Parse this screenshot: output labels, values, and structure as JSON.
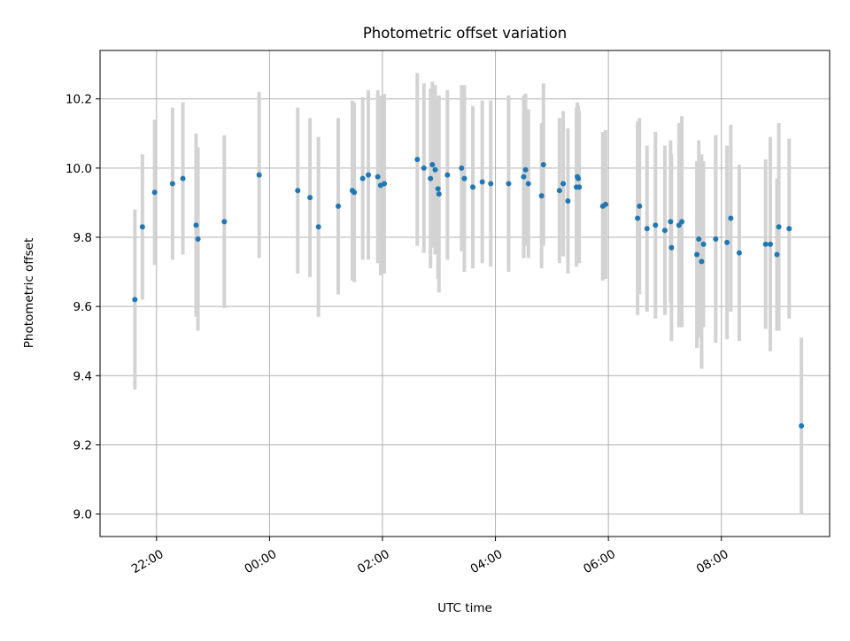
{
  "chart_data": {
    "type": "scatter",
    "title": "Photometric offset variation",
    "xlabel": "UTC time",
    "ylabel": "Photometric offset",
    "x_unit": "UTC time (hours of day)",
    "xlim": [
      "21:00",
      "09:55"
    ],
    "ylim": [
      8.935,
      10.34
    ],
    "x_ticks": [
      "22:00",
      "00:00",
      "02:00",
      "04:00",
      "06:00",
      "08:00"
    ],
    "y_ticks": [
      "9.0",
      "9.2",
      "9.4",
      "9.6",
      "9.8",
      "10.0",
      "10.2"
    ],
    "grid": true,
    "colors": {
      "point": "#1f77b4",
      "errorbar": "#d3d3d3",
      "grid": "#b0b0b0"
    },
    "points": [
      {
        "time": "21:37",
        "y": 9.62,
        "err": 0.26
      },
      {
        "time": "21:45",
        "y": 9.83,
        "err": 0.21
      },
      {
        "time": "21:58",
        "y": 9.93,
        "err": 0.21
      },
      {
        "time": "22:17",
        "y": 9.955,
        "err": 0.22
      },
      {
        "time": "22:28",
        "y": 9.97,
        "err": 0.22
      },
      {
        "time": "22:42",
        "y": 9.835,
        "err": 0.265
      },
      {
        "time": "22:44",
        "y": 9.795,
        "err": 0.265
      },
      {
        "time": "23:12",
        "y": 9.845,
        "err": 0.25
      },
      {
        "time": "23:49",
        "y": 9.98,
        "err": 0.24
      },
      {
        "time": "00:30",
        "y": 9.935,
        "err": 0.24
      },
      {
        "time": "00:43",
        "y": 9.915,
        "err": 0.23
      },
      {
        "time": "00:52",
        "y": 9.83,
        "err": 0.26
      },
      {
        "time": "01:13",
        "y": 9.89,
        "err": 0.255
      },
      {
        "time": "01:28",
        "y": 9.935,
        "err": 0.26
      },
      {
        "time": "01:30",
        "y": 9.93,
        "err": 0.26
      },
      {
        "time": "01:39",
        "y": 9.97,
        "err": 0.235
      },
      {
        "time": "01:45",
        "y": 9.98,
        "err": 0.245
      },
      {
        "time": "01:55",
        "y": 9.975,
        "err": 0.25
      },
      {
        "time": "01:58",
        "y": 9.95,
        "err": 0.26
      },
      {
        "time": "02:02",
        "y": 9.955,
        "err": 0.26
      },
      {
        "time": "02:37",
        "y": 10.025,
        "err": 0.25
      },
      {
        "time": "02:44",
        "y": 10.0,
        "err": 0.245
      },
      {
        "time": "02:51",
        "y": 9.97,
        "err": 0.26
      },
      {
        "time": "02:53",
        "y": 10.01,
        "err": 0.24
      },
      {
        "time": "02:56",
        "y": 9.995,
        "err": 0.245
      },
      {
        "time": "02:59",
        "y": 9.94,
        "err": 0.26
      },
      {
        "time": "03:00",
        "y": 9.925,
        "err": 0.285
      },
      {
        "time": "03:09",
        "y": 9.98,
        "err": 0.245
      },
      {
        "time": "03:24",
        "y": 10.0,
        "err": 0.24
      },
      {
        "time": "03:27",
        "y": 9.97,
        "err": 0.27
      },
      {
        "time": "03:36",
        "y": 9.945,
        "err": 0.235
      },
      {
        "time": "03:46",
        "y": 9.96,
        "err": 0.235
      },
      {
        "time": "03:55",
        "y": 9.955,
        "err": 0.24
      },
      {
        "time": "04:14",
        "y": 9.955,
        "err": 0.255
      },
      {
        "time": "04:30",
        "y": 9.975,
        "err": 0.235
      },
      {
        "time": "04:32",
        "y": 9.995,
        "err": 0.22
      },
      {
        "time": "04:35",
        "y": 9.955,
        "err": 0.215
      },
      {
        "time": "04:49",
        "y": 9.92,
        "err": 0.21
      },
      {
        "time": "04:51",
        "y": 10.01,
        "err": 0.235
      },
      {
        "time": "05:08",
        "y": 9.935,
        "err": 0.21
      },
      {
        "time": "05:12",
        "y": 9.955,
        "err": 0.21
      },
      {
        "time": "05:17",
        "y": 9.905,
        "err": 0.21
      },
      {
        "time": "05:26",
        "y": 9.945,
        "err": 0.23
      },
      {
        "time": "05:27",
        "y": 9.975,
        "err": 0.215
      },
      {
        "time": "05:28",
        "y": 9.97,
        "err": 0.21
      },
      {
        "time": "05:29",
        "y": 9.945,
        "err": 0.22
      },
      {
        "time": "05:54",
        "y": 9.89,
        "err": 0.215
      },
      {
        "time": "05:57",
        "y": 9.895,
        "err": 0.215
      },
      {
        "time": "06:31",
        "y": 9.855,
        "err": 0.28
      },
      {
        "time": "06:33",
        "y": 9.89,
        "err": 0.255
      },
      {
        "time": "06:41",
        "y": 9.825,
        "err": 0.24
      },
      {
        "time": "06:50",
        "y": 9.835,
        "err": 0.27
      },
      {
        "time": "07:00",
        "y": 9.82,
        "err": 0.245
      },
      {
        "time": "07:06",
        "y": 9.845,
        "err": 0.235
      },
      {
        "time": "07:07",
        "y": 9.77,
        "err": 0.27
      },
      {
        "time": "07:15",
        "y": 9.835,
        "err": 0.295
      },
      {
        "time": "07:18",
        "y": 9.845,
        "err": 0.305
      },
      {
        "time": "07:34",
        "y": 9.75,
        "err": 0.27
      },
      {
        "time": "07:36",
        "y": 9.795,
        "err": 0.285
      },
      {
        "time": "07:39",
        "y": 9.73,
        "err": 0.31
      },
      {
        "time": "07:41",
        "y": 9.78,
        "err": 0.24
      },
      {
        "time": "07:54",
        "y": 9.795,
        "err": 0.3
      },
      {
        "time": "08:06",
        "y": 9.785,
        "err": 0.28
      },
      {
        "time": "08:10",
        "y": 9.855,
        "err": 0.27
      },
      {
        "time": "08:19",
        "y": 9.755,
        "err": 0.255
      },
      {
        "time": "08:47",
        "y": 9.78,
        "err": 0.245
      },
      {
        "time": "08:52",
        "y": 9.78,
        "err": 0.31
      },
      {
        "time": "08:59",
        "y": 9.75,
        "err": 0.22
      },
      {
        "time": "09:01",
        "y": 9.83,
        "err": 0.3
      },
      {
        "time": "09:12",
        "y": 9.825,
        "err": 0.26
      },
      {
        "time": "09:25",
        "y": 9.255,
        "err": 0.255
      }
    ]
  }
}
